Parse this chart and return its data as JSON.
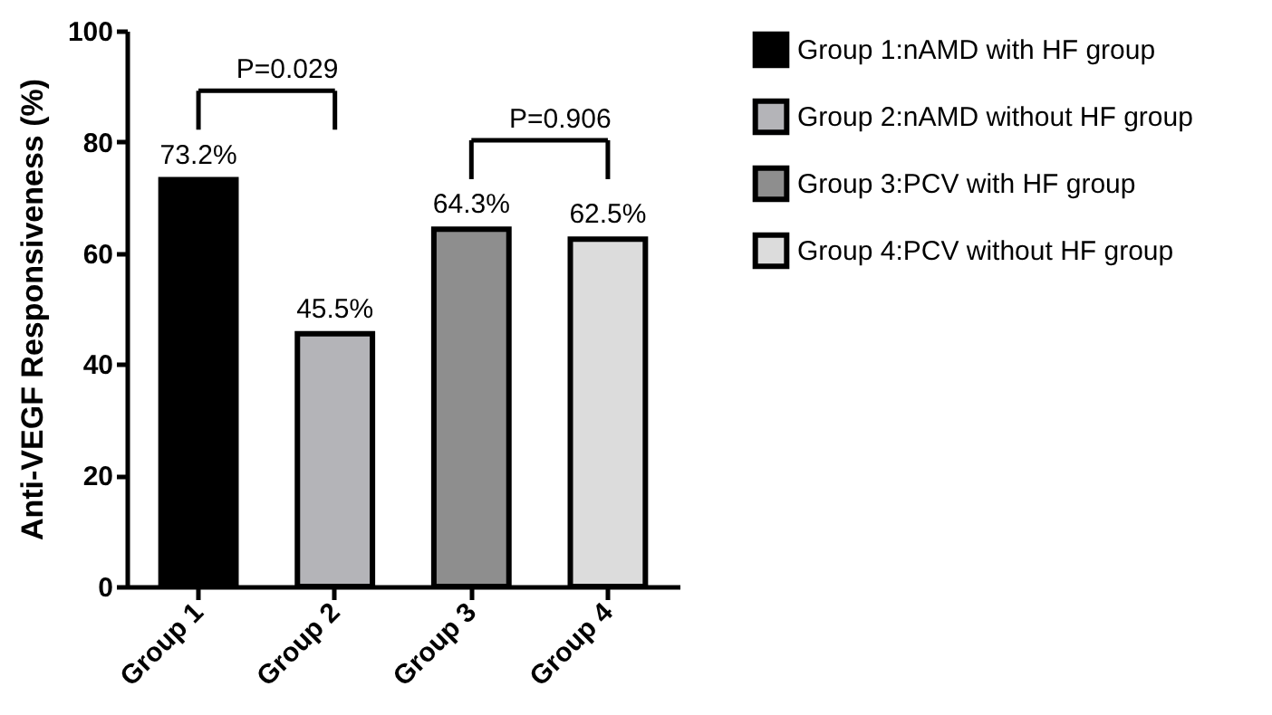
{
  "chart_data": {
    "type": "bar",
    "ylabel": "Anti-VEGF Responsiveness (%)",
    "categories": [
      "Group 1",
      "Group 2",
      "Group 3",
      "Group 4"
    ],
    "series": [
      {
        "name": "Group 1:nAMD with HF group",
        "color": "#000000",
        "values": [
          73.2,
          null,
          null,
          null
        ],
        "value_labels": [
          "73.2%",
          null,
          null,
          null
        ]
      },
      {
        "name": "Group 2:nAMD without HF group",
        "color": "#b4b4b8",
        "values": [
          null,
          45.5,
          null,
          null
        ],
        "value_labels": [
          null,
          "45.5%",
          null,
          null
        ]
      },
      {
        "name": "Group 3:PCV with HF group",
        "color": "#8e8e8e",
        "values": [
          null,
          null,
          64.3,
          null
        ],
        "value_labels": [
          null,
          null,
          "64.3%",
          null
        ]
      },
      {
        "name": "Group 4:PCV without HF group",
        "color": "#dcdcdc",
        "values": [
          null,
          null,
          null,
          62.5
        ],
        "value_labels": [
          null,
          null,
          null,
          "62.5%"
        ]
      }
    ],
    "ylim": [
      0,
      100
    ],
    "yticks": [
      0,
      20,
      40,
      60,
      80,
      100
    ],
    "grid": false,
    "legend": "top right",
    "annotations": [
      "P=0.029",
      "P=0.906"
    ]
  }
}
